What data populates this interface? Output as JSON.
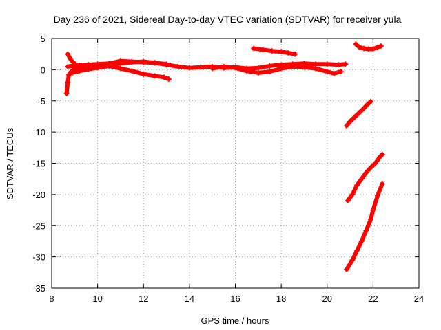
{
  "chart_data": {
    "type": "scatter",
    "title": "Day 236 of 2021, Sidereal Day-to-day VTEC variation (SDTVAR) for receiver yula",
    "xlabel": "GPS time / hours",
    "ylabel": "SDTVAR / TECUs",
    "xlim": [
      8,
      24
    ],
    "ylim": [
      -35,
      5
    ],
    "xticks": [
      8,
      10,
      12,
      14,
      16,
      18,
      20,
      22,
      24
    ],
    "yticks": [
      5,
      0,
      -5,
      -10,
      -15,
      -20,
      -25,
      -30,
      -35
    ],
    "xtick_labels": [
      "8",
      "10",
      "12",
      "14",
      "16",
      "18",
      "20",
      "22",
      "24"
    ],
    "ytick_labels": [
      "5",
      "0",
      "-5",
      "-10",
      "-15",
      "-20",
      "-25",
      "-30",
      "-35"
    ],
    "grid": true,
    "legend": "none",
    "marker": "+",
    "color": "#ff0000",
    "series": [
      {
        "points": [
          [
            8.65,
            -3.8
          ],
          [
            8.7,
            -2.0
          ],
          [
            8.75,
            -0.8
          ],
          [
            8.85,
            -0.3
          ],
          [
            9.0,
            0.2
          ],
          [
            9.5,
            0.5
          ],
          [
            10.0,
            0.7
          ],
          [
            10.5,
            0.8
          ],
          [
            11.0,
            1.0
          ],
          [
            11.5,
            1.2
          ],
          [
            12.0,
            1.3
          ],
          [
            12.5,
            1.1
          ],
          [
            13.0,
            0.8
          ],
          [
            13.5,
            0.5
          ],
          [
            14.0,
            0.3
          ],
          [
            14.5,
            0.4
          ],
          [
            15.0,
            0.5
          ],
          [
            15.5,
            0.3
          ],
          [
            16.0,
            0.4
          ],
          [
            16.5,
            0.2
          ],
          [
            17.0,
            0.3
          ],
          [
            17.5,
            0.6
          ],
          [
            18.0,
            0.8
          ],
          [
            18.5,
            0.9
          ],
          [
            19.0,
            1.0
          ],
          [
            19.5,
            0.9
          ],
          [
            20.0,
            0.9
          ],
          [
            20.5,
            0.8
          ],
          [
            20.8,
            0.9
          ]
        ]
      },
      {
        "points": [
          [
            8.7,
            0.5
          ],
          [
            8.9,
            0.6
          ],
          [
            9.2,
            0.7
          ],
          [
            9.6,
            0.8
          ],
          [
            10.0,
            0.9
          ],
          [
            10.5,
            1.0
          ],
          [
            11.0,
            1.4
          ],
          [
            11.5,
            1.3
          ],
          [
            12.0,
            1.2
          ],
          [
            12.5,
            1.1
          ],
          [
            13.0,
            0.9
          ]
        ]
      },
      {
        "points": [
          [
            8.7,
            2.5
          ],
          [
            8.8,
            1.8
          ],
          [
            8.9,
            1.3
          ],
          [
            9.0,
            1.0
          ]
        ]
      },
      {
        "points": [
          [
            8.9,
            -0.5
          ],
          [
            9.2,
            -0.2
          ],
          [
            9.6,
            0.1
          ],
          [
            10.0,
            0.3
          ],
          [
            10.5,
            0.6
          ],
          [
            11.0,
            0.2
          ],
          [
            11.5,
            -0.2
          ],
          [
            12.0,
            -0.7
          ],
          [
            12.5,
            -1.0
          ],
          [
            12.9,
            -1.2
          ],
          [
            13.1,
            -1.5
          ]
        ]
      },
      {
        "points": [
          [
            15.0,
            0.2
          ],
          [
            15.5,
            0.5
          ],
          [
            16.0,
            0.3
          ],
          [
            16.5,
            -0.2
          ],
          [
            17.0,
            -0.5
          ],
          [
            17.5,
            -0.3
          ],
          [
            18.0,
            0.2
          ],
          [
            18.5,
            0.5
          ],
          [
            19.0,
            0.4
          ],
          [
            19.5,
            0.2
          ],
          [
            20.0,
            -0.3
          ],
          [
            20.3,
            -0.6
          ],
          [
            20.6,
            -0.3
          ]
        ]
      },
      {
        "points": [
          [
            16.8,
            3.4
          ],
          [
            17.2,
            3.2
          ],
          [
            17.6,
            3.0
          ],
          [
            18.0,
            2.9
          ],
          [
            18.3,
            2.7
          ],
          [
            18.6,
            2.5
          ]
        ]
      },
      {
        "points": [
          [
            21.25,
            4.1
          ],
          [
            21.4,
            3.6
          ],
          [
            21.6,
            3.4
          ],
          [
            21.8,
            3.3
          ],
          [
            22.0,
            3.3
          ],
          [
            22.2,
            3.6
          ],
          [
            22.35,
            3.8
          ]
        ]
      },
      {
        "points": [
          [
            20.85,
            -9.0
          ],
          [
            21.0,
            -8.3
          ],
          [
            21.2,
            -7.6
          ],
          [
            21.4,
            -6.9
          ],
          [
            21.6,
            -6.2
          ],
          [
            21.75,
            -5.6
          ],
          [
            21.9,
            -5.1
          ]
        ]
      },
      {
        "points": [
          [
            20.9,
            -21.0
          ],
          [
            21.1,
            -20.0
          ],
          [
            21.3,
            -18.5
          ],
          [
            21.5,
            -17.5
          ],
          [
            21.7,
            -16.5
          ],
          [
            21.9,
            -15.7
          ],
          [
            22.1,
            -15.0
          ],
          [
            22.3,
            -14.0
          ],
          [
            22.4,
            -13.6
          ]
        ]
      },
      {
        "points": [
          [
            20.85,
            -32.0
          ],
          [
            21.1,
            -30.5
          ],
          [
            21.3,
            -29.0
          ],
          [
            21.5,
            -27.5
          ],
          [
            21.7,
            -25.8
          ],
          [
            21.9,
            -24.0
          ],
          [
            22.0,
            -22.5
          ],
          [
            22.2,
            -20.2
          ],
          [
            22.4,
            -18.3
          ]
        ]
      }
    ]
  }
}
